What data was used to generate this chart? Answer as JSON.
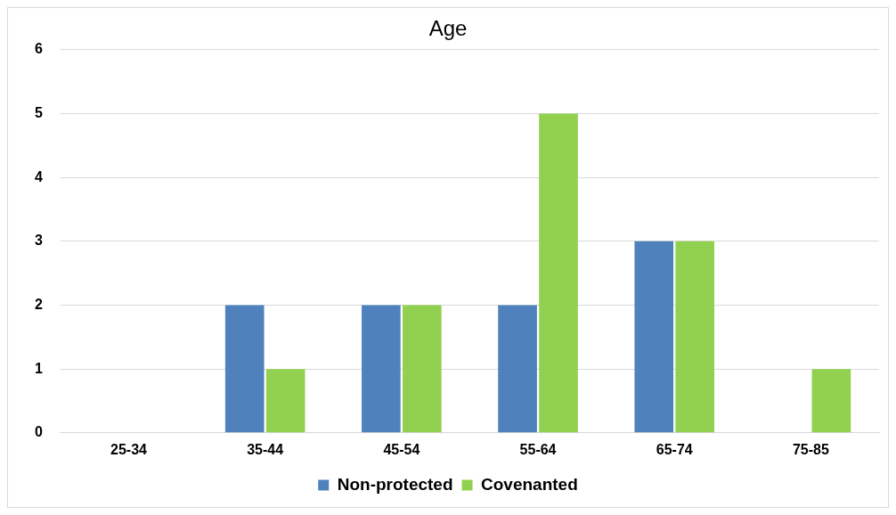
{
  "chart_data": {
    "type": "bar",
    "title": "Age",
    "categories": [
      "25-34",
      "35-44",
      "45-54",
      "55-64",
      "65-74",
      "75-85"
    ],
    "series": [
      {
        "name": "Non-protected",
        "color": "#4f81bd",
        "values": [
          0,
          2,
          2,
          2,
          3,
          0
        ]
      },
      {
        "name": "Covenanted",
        "color": "#92d050",
        "values": [
          0,
          1,
          2,
          5,
          3,
          1
        ]
      }
    ],
    "ylim": [
      0,
      6
    ],
    "yticks": [
      0,
      1,
      2,
      3,
      4,
      5,
      6
    ],
    "grid": "y",
    "legend": "bottom"
  }
}
